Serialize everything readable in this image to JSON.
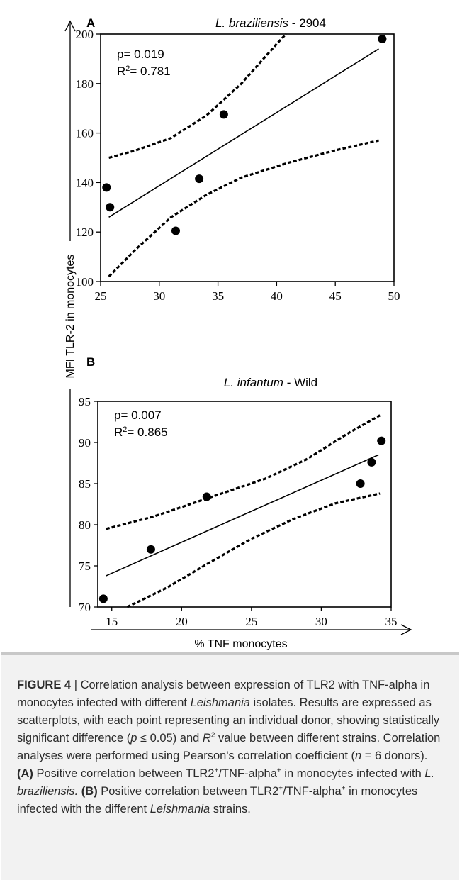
{
  "chart_data": [
    {
      "type": "scatter",
      "panel_label": "A",
      "title_italic": "L. braziliensis",
      "title_suffix": " - 2904",
      "ylabel": "MFI TLR-2 in monocytes",
      "xlabel": "% TNF monocytes",
      "xlim": [
        25,
        50
      ],
      "ylim": [
        100,
        200
      ],
      "xticks": [
        25,
        30,
        35,
        40,
        45,
        50
      ],
      "yticks": [
        100,
        120,
        140,
        160,
        180,
        200
      ],
      "stat_p": "p= 0.019",
      "stat_r2_prefix": "R",
      "stat_r2_sup": "2",
      "stat_r2_value": "= 0.781",
      "points": [
        {
          "x": 25.5,
          "y": 138
        },
        {
          "x": 25.8,
          "y": 130
        },
        {
          "x": 31.4,
          "y": 120.5
        },
        {
          "x": 33.4,
          "y": 141.5
        },
        {
          "x": 35.5,
          "y": 167.5
        },
        {
          "x": 49.0,
          "y": 198
        }
      ],
      "fit_line": [
        {
          "x": 25.7,
          "y": 126
        },
        {
          "x": 48.7,
          "y": 194
        }
      ],
      "ci_upper": [
        {
          "x": 25.7,
          "y": 150
        },
        {
          "x": 28,
          "y": 153
        },
        {
          "x": 31,
          "y": 158
        },
        {
          "x": 34,
          "y": 167
        },
        {
          "x": 37,
          "y": 180
        },
        {
          "x": 40,
          "y": 196
        },
        {
          "x": 40.8,
          "y": 200
        }
      ],
      "ci_lower": [
        {
          "x": 25.7,
          "y": 102
        },
        {
          "x": 28,
          "y": 113
        },
        {
          "x": 31,
          "y": 126
        },
        {
          "x": 34,
          "y": 135
        },
        {
          "x": 37,
          "y": 142
        },
        {
          "x": 41,
          "y": 148
        },
        {
          "x": 45,
          "y": 153
        },
        {
          "x": 48.7,
          "y": 157
        }
      ]
    },
    {
      "type": "scatter",
      "panel_label": "B",
      "title_italic": "L. infantum",
      "title_suffix": " - Wild",
      "ylabel": "MFI TLR-2 in monocytes",
      "xlabel": "% TNF monocytes",
      "xlim": [
        14,
        35
      ],
      "ylim": [
        70,
        95
      ],
      "xticks": [
        15,
        20,
        25,
        30,
        35
      ],
      "yticks": [
        70,
        75,
        80,
        85,
        90,
        95
      ],
      "stat_p": "p= 0.007",
      "stat_r2_prefix": "R",
      "stat_r2_sup": "2",
      "stat_r2_value": "= 0.865",
      "points": [
        {
          "x": 14.4,
          "y": 71
        },
        {
          "x": 17.8,
          "y": 77
        },
        {
          "x": 21.8,
          "y": 83.4
        },
        {
          "x": 32.8,
          "y": 85
        },
        {
          "x": 33.6,
          "y": 87.6
        },
        {
          "x": 34.3,
          "y": 90.2
        }
      ],
      "fit_line": [
        {
          "x": 14.6,
          "y": 73.8
        },
        {
          "x": 34.1,
          "y": 88.5
        }
      ],
      "ci_upper": [
        {
          "x": 14.6,
          "y": 79.5
        },
        {
          "x": 18,
          "y": 81
        },
        {
          "x": 22,
          "y": 83.3
        },
        {
          "x": 26,
          "y": 85.6
        },
        {
          "x": 29,
          "y": 88
        },
        {
          "x": 32,
          "y": 91.2
        },
        {
          "x": 34.2,
          "y": 93.3
        }
      ],
      "ci_lower": [
        {
          "x": 16.1,
          "y": 70
        },
        {
          "x": 19,
          "y": 72.4
        },
        {
          "x": 22,
          "y": 75.4
        },
        {
          "x": 25,
          "y": 78.3
        },
        {
          "x": 28,
          "y": 80.7
        },
        {
          "x": 31,
          "y": 82.6
        },
        {
          "x": 34.2,
          "y": 83.8
        }
      ]
    }
  ],
  "caption": {
    "figure_label": "FIGURE 4",
    "sep": " | ",
    "t1": "Correlation analysis between expression of TLR2 with TNF-alpha in monocytes infected with different ",
    "t1_it": "Leishmania",
    "t2": " isolates. Results are expressed as scatterplots, with each point representing an individual donor, showing statistically significant difference (",
    "t2_it": "p",
    "t3": " ≤ 0.05) and ",
    "t3_it": "R",
    "t3_sup": "2",
    "t4": " value between different strains. Correlation analyses were performed using Pearson's correlation coefficient (",
    "t4_it": "n",
    "t5": " = 6 donors). ",
    "t5_b": "(A)",
    "t6": " Positive correlation between TLR2",
    "t6_sup": "+",
    "t7": "/TNF-alpha",
    "t7_sup": "+",
    "t8": " in monocytes infected with ",
    "t8_it": "L. braziliensis.",
    "t9": " ",
    "t9_b": "(B)",
    "t10": " Positive correlation between TLR2",
    "t10_sup": "+",
    "t11": "/TNF-alpha",
    "t11_sup": "+",
    "t12": " in monocytes infected with the different ",
    "t12_it": "Leishmania",
    "t13": " strains."
  }
}
